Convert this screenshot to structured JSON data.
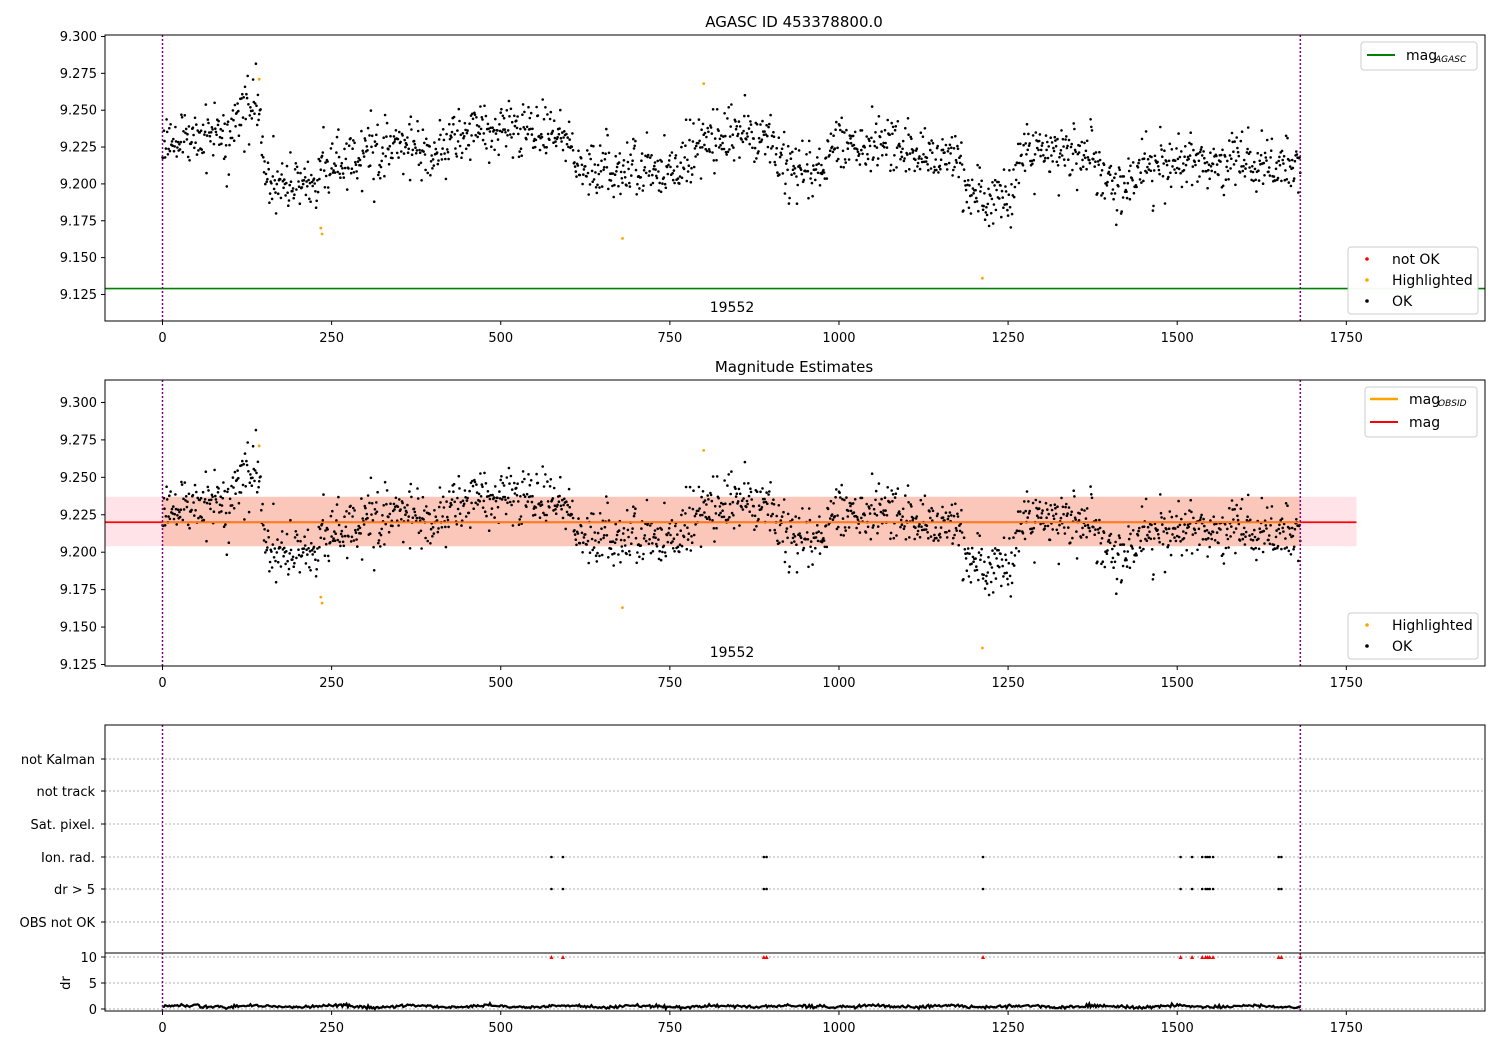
{
  "chart_data": [
    {
      "type": "scatter",
      "title": "AGASC ID 453378800.0",
      "xlim": [
        -85,
        1955
      ],
      "ylim": [
        9.107,
        9.301
      ],
      "xticks": [
        "0",
        "250",
        "500",
        "750",
        "1000",
        "1250",
        "1500",
        "1750"
      ],
      "yticks": [
        "9.125",
        "9.150",
        "9.175",
        "9.200",
        "9.225",
        "9.250",
        "9.275",
        "9.300"
      ],
      "mag_agasc": 9.129,
      "obsid_label": "19552",
      "obsid_boundaries": [
        0,
        1682
      ],
      "legend_top": {
        "entry": "mag",
        "subscript": "AGASC"
      },
      "legend_bottom": [
        "not OK",
        "Highlighted",
        "OK"
      ],
      "series_summary": [
        {
          "name": "OK",
          "x_range": [
            0,
            1682
          ],
          "segments": [
            {
              "x": [
                0,
                120
              ],
              "mean": 9.232
            },
            {
              "x": [
                120,
                150
              ],
              "mean": 9.25
            },
            {
              "x": [
                150,
                240
              ],
              "mean": 9.2
            },
            {
              "x": [
                240,
                300
              ],
              "mean": 9.212
            },
            {
              "x": [
                300,
                440
              ],
              "mean": 9.224
            },
            {
              "x": [
                440,
                620
              ],
              "mean": 9.236
            },
            {
              "x": [
                620,
                800
              ],
              "mean": 9.21
            },
            {
              "x": [
                800,
                920
              ],
              "mean": 9.232
            },
            {
              "x": [
                920,
                990
              ],
              "mean": 9.21
            },
            {
              "x": [
                990,
                1110
              ],
              "mean": 9.228
            },
            {
              "x": [
                1110,
                1190
              ],
              "mean": 9.218
            },
            {
              "x": [
                1190,
                1270
              ],
              "mean": 9.193
            },
            {
              "x": [
                1270,
                1400
              ],
              "mean": 9.222
            },
            {
              "x": [
                1400,
                1440
              ],
              "mean": 9.198
            },
            {
              "x": [
                1440,
                1682
              ],
              "mean": 9.214
            }
          ]
        },
        {
          "name": "Highlighted",
          "points": [
            [
              143,
              9.271
            ],
            [
              234,
              9.17
            ],
            [
              236,
              9.166
            ],
            [
              680,
              9.163
            ],
            [
              800,
              9.268
            ],
            [
              1212,
              9.136
            ]
          ]
        }
      ]
    },
    {
      "type": "scatter",
      "title": "Magnitude Estimates",
      "xlim": [
        -85,
        1955
      ],
      "ylim": [
        9.124,
        9.315
      ],
      "xticks": [
        "0",
        "250",
        "500",
        "750",
        "1000",
        "1250",
        "1500",
        "1750"
      ],
      "yticks": [
        "9.125",
        "9.150",
        "9.175",
        "9.200",
        "9.225",
        "9.250",
        "9.275",
        "9.300"
      ],
      "mag": 9.22,
      "mag_band": [
        9.204,
        9.237
      ],
      "band_x": [
        -85,
        1765
      ],
      "obsid_label": "19552",
      "obsid_boundaries": [
        0,
        1682
      ],
      "legend_top": [
        {
          "entry": "mag",
          "subscript": "OBSID"
        },
        {
          "entry": "mag",
          "subscript": ""
        }
      ],
      "legend_bottom": [
        "Highlighted",
        "OK"
      ],
      "colors": {
        "mag_obsid": "#ffa500",
        "mag": "#ff0000",
        "band": "#f4a582"
      }
    },
    {
      "type": "scatter",
      "title": "",
      "xlim": [
        -85,
        1955
      ],
      "xticks": [
        "0",
        "250",
        "500",
        "750",
        "1000",
        "1250",
        "1500",
        "1750"
      ],
      "flag_rows": [
        "not Kalman",
        "not track",
        "Sat. pixel.",
        "Ion. rad.",
        "dr > 5",
        "OBS not OK"
      ],
      "flag_points": {
        "Ion. rad.": [
          575,
          592,
          889,
          893,
          1213,
          1505,
          1522,
          1537,
          1542,
          1545,
          1548,
          1553,
          1650,
          1654
        ],
        "dr > 5": [
          575,
          592,
          889,
          893,
          1213,
          1505,
          1522,
          1537,
          1542,
          1545,
          1548,
          1553,
          1650,
          1654
        ]
      },
      "dr_ylabel": "dr",
      "dr_ylim": [
        -1,
        11
      ],
      "dr_yticks": [
        "0",
        "5",
        "10"
      ],
      "dr_clipped_x": [
        575,
        592,
        889,
        893,
        1213,
        1505,
        1522,
        1537,
        1542,
        1545,
        1548,
        1553,
        1650,
        1654,
        1682
      ],
      "dr_baseline_mean": 0.5
    }
  ]
}
